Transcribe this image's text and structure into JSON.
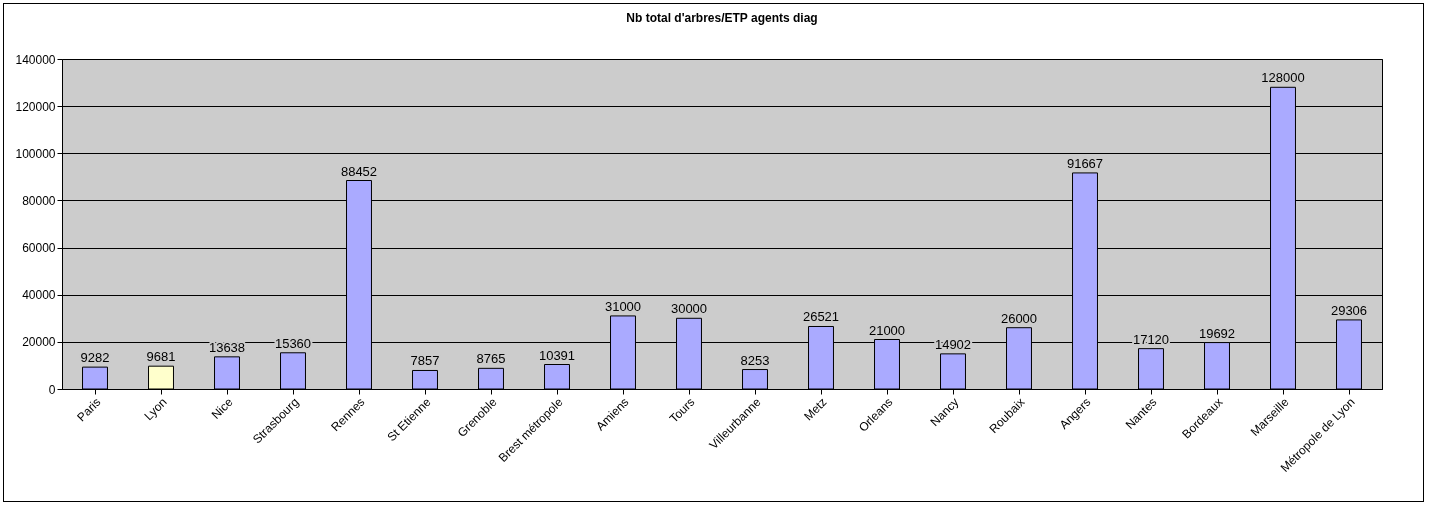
{
  "chart_data": {
    "type": "bar",
    "title": "Nb total d'arbres/ETP agents diag",
    "categories": [
      "Paris",
      "Lyon",
      "Nice",
      "Strasbourg",
      "Rennes",
      "St Etienne",
      "Grenoble",
      "Brest métropole",
      "Amiens",
      "Tours",
      "Villeurbanne",
      "Metz",
      "Orleans",
      "Nancy",
      "Roubaix",
      "Angers",
      "Nantes",
      "Bordeaux",
      "Marseille",
      "Métropole de Lyon"
    ],
    "values": [
      9282,
      9681,
      13638,
      15360,
      88452,
      7857,
      8765,
      10391,
      31000,
      30000,
      8253,
      26521,
      21000,
      14902,
      26000,
      91667,
      17120,
      19692,
      128000,
      29306
    ],
    "colors": [
      "#aaaaff",
      "#ffffcc",
      "#aaaaff",
      "#aaaaff",
      "#aaaaff",
      "#aaaaff",
      "#aaaaff",
      "#aaaaff",
      "#aaaaff",
      "#aaaaff",
      "#aaaaff",
      "#aaaaff",
      "#aaaaff",
      "#aaaaff",
      "#aaaaff",
      "#aaaaff",
      "#aaaaff",
      "#aaaaff",
      "#aaaaff",
      "#aaaaff"
    ],
    "ylim": [
      0,
      140000
    ],
    "yticks": [
      0,
      20000,
      40000,
      60000,
      80000,
      100000,
      120000,
      140000
    ],
    "grid": "y",
    "data_labels": true
  }
}
